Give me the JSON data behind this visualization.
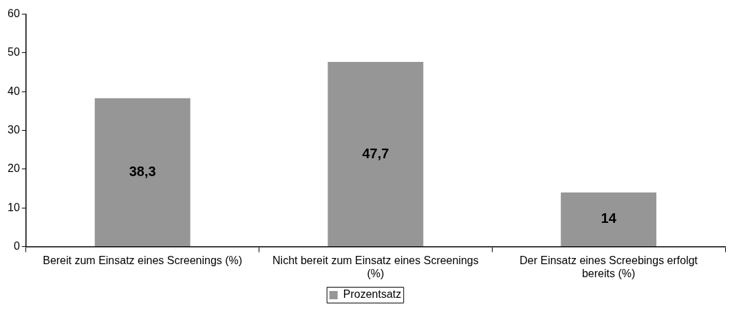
{
  "chart_data": {
    "type": "bar",
    "categories": [
      "Bereit zum Einsatz eines Screenings (%)",
      "Nicht bereit zum Einsatz eines Screenings (%)",
      "Der Einsatz eines Screebings erfolgt bereits (%)"
    ],
    "series": [
      {
        "name": "Prozentsatz",
        "color": "#969696",
        "values": [
          38.3,
          47.7,
          14
        ],
        "value_labels": [
          "38,3",
          "47,7",
          "14"
        ]
      }
    ],
    "ylim": [
      0,
      60
    ],
    "yticks": [
      0,
      10,
      20,
      30,
      40,
      50,
      60
    ],
    "grid": false,
    "legend": "bottom"
  }
}
